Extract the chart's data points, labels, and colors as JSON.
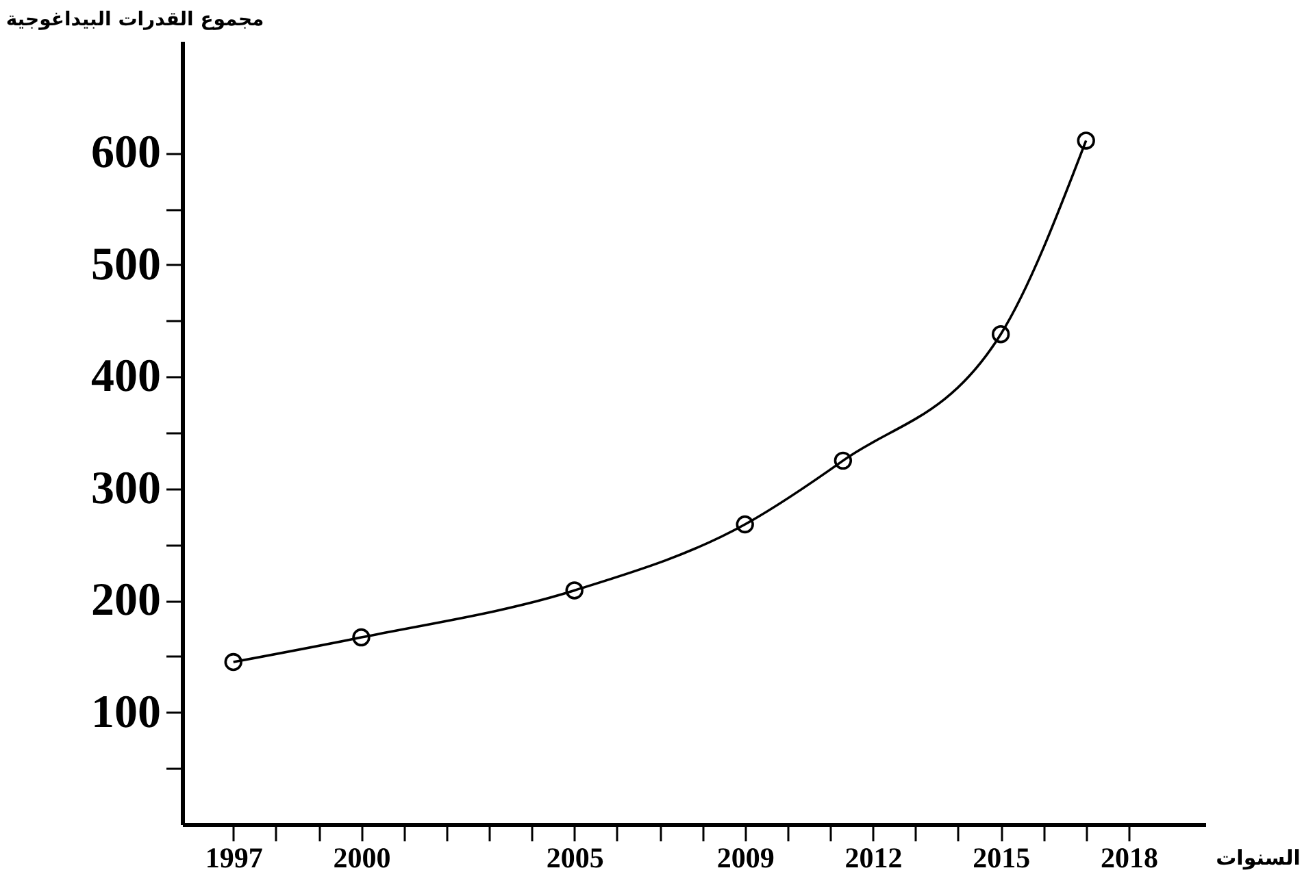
{
  "chart_data": {
    "type": "line",
    "xlabel": "السنوات",
    "ylabel": "مجموع القدرات البيداغوجية",
    "x": [
      1997,
      2000,
      2005,
      2009,
      2011.3,
      2015,
      2017
    ],
    "series": [
      {
        "color": "#000000",
        "values": [
          145,
          167,
          209,
          268,
          325,
          438,
          611
        ]
      }
    ],
    "xlim": [
      1995.8,
      2019.8
    ],
    "xticks": [
      1997,
      {
        "value": 1998,
        "label": null
      },
      {
        "value": 1999,
        "label": null
      },
      2000,
      {
        "value": 2001,
        "label": null
      },
      {
        "value": 2002,
        "label": null
      },
      {
        "value": 2003,
        "label": null
      },
      {
        "value": 2004,
        "label": null
      },
      2005,
      {
        "value": 2006,
        "label": null
      },
      {
        "value": 2007,
        "label": null
      },
      {
        "value": 2008,
        "label": null
      },
      2009,
      {
        "value": 2010,
        "label": null
      },
      {
        "value": 2011,
        "label": null
      },
      2012,
      {
        "value": 2013,
        "label": null
      },
      {
        "value": 2014,
        "label": null
      },
      2015,
      {
        "value": 2016,
        "label": null
      },
      {
        "value": 2017,
        "label": null
      },
      2018
    ],
    "ylim": [
      0,
      700
    ],
    "yticks": [
      {
        "value": 50,
        "label": null
      },
      100,
      {
        "value": 150,
        "label": null
      },
      200,
      {
        "value": 250,
        "label": null
      },
      300,
      {
        "value": 350,
        "label": null
      },
      400,
      {
        "value": 450,
        "label": null
      },
      500,
      {
        "value": 550,
        "label": null
      },
      600
    ],
    "grid": false,
    "marker": "circle",
    "line_style": "solid"
  }
}
